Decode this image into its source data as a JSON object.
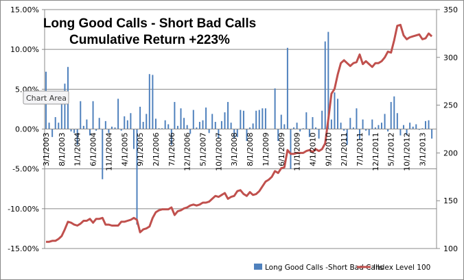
{
  "chart_data": {
    "type": "bar+line",
    "title_lines": [
      "Long Good Calls - Short Bad Calls",
      "Cumulative Return +223%"
    ],
    "tooltip": "Chart Area",
    "x_start": "3/1/2003",
    "x_tick_labels": [
      "3/1/2003",
      "8/1/2003",
      "1/1/2004",
      "6/1/2004",
      "11/1/2004",
      "4/1/2005",
      "9/1/2005",
      "2/1/2006",
      "7/1/2006",
      "12/1/2006",
      "5/1/2007",
      "10/1/2007",
      "3/1/2008",
      "8/1/2008",
      "1/1/2009",
      "6/1/2009",
      "11/1/2009",
      "4/1/2010",
      "9/1/2010",
      "2/1/2011",
      "7/1/2011",
      "12/1/2011",
      "5/1/2012",
      "10/1/2012",
      "3/1/2013"
    ],
    "y_left": {
      "min": -15,
      "max": 15,
      "step": 5,
      "tick_labels": [
        "15.00%",
        "10.00%",
        "5.00%",
        "0.00%",
        "-5.00%",
        "-10.00%",
        "-15.00%"
      ]
    },
    "y_right": {
      "min": 100,
      "max": 350,
      "step": 50,
      "tick_labels": [
        "350",
        "300",
        "250",
        "200",
        "150",
        "100"
      ]
    },
    "grid": true,
    "legend_position": "bottom",
    "series": [
      {
        "name": "Long Good Calls -Short Bad Calls",
        "type": "bar",
        "axis": "left",
        "color": "#4F81BD",
        "values": [
          7.2,
          0.8,
          -1.0,
          1.5,
          0.8,
          3.5,
          5.7,
          7.8,
          -0.3,
          -0.5,
          -2.0,
          3.5,
          0.4,
          1.2,
          -0.8,
          3.5,
          -0.2,
          1.4,
          -6.3,
          1.0,
          -0.5,
          0.3,
          0.2,
          3.8,
          -0.2,
          1.6,
          1.1,
          2.0,
          -2.5,
          -12.0,
          2.8,
          0.9,
          1.9,
          6.9,
          6.8,
          1.3,
          0.1,
          0.1,
          1.1,
          0.6,
          -2.0,
          3.4,
          0.4,
          2.6,
          1.4,
          0.5,
          -0.6,
          2.4,
          0.2,
          0.9,
          1.1,
          2.7,
          -0.5,
          1.9,
          0.9,
          -1.2,
          1.0,
          2.1,
          3.4,
          0.8,
          -1.2,
          -1.0,
          2.4,
          2.3,
          -1.5,
          0.2,
          0.7,
          2.3,
          2.4,
          2.6,
          2.6,
          0.0,
          0.0,
          5.1,
          -1.5,
          1.8,
          0.6,
          10.2,
          -5.0,
          0.2,
          0.8,
          -0.3,
          0.1,
          2.1,
          -1.0,
          1.5,
          0.2,
          -1.2,
          2.3,
          11.0,
          12.2,
          1.2,
          4.6,
          3.8,
          0.8,
          -0.2,
          -2.0,
          1.4,
          0.2,
          2.6,
          -1.3,
          1.2,
          -0.2,
          -0.8,
          1.2,
          0.2,
          0.5,
          0.8,
          1.9,
          -0.3,
          3.4,
          4.1,
          2.0,
          -0.8,
          0.5,
          -0.8,
          0.8,
          0.3,
          0.6,
          -0.1,
          0.1,
          1.0,
          1.1,
          -1.2
        ]
      },
      {
        "name": "Index Level 100",
        "type": "line",
        "axis": "right",
        "color": "#C0504D",
        "values": [
          107,
          107,
          108,
          108,
          110,
          113,
          120,
          128,
          127,
          125,
          124,
          126,
          129,
          129,
          131,
          127,
          131,
          131,
          132,
          125,
          125,
          124,
          124,
          124,
          128,
          128,
          129,
          130,
          132,
          130,
          117,
          120,
          121,
          123,
          132,
          138,
          140,
          141,
          141,
          141,
          143,
          135,
          139,
          140,
          142,
          143,
          145,
          146,
          145,
          146,
          148,
          148,
          149,
          152,
          155,
          154,
          156,
          158,
          152,
          154,
          155,
          160,
          161,
          157,
          155,
          159,
          156,
          157,
          160,
          165,
          170,
          172,
          175,
          181,
          179,
          184,
          185,
          203,
          199,
          199,
          200,
          200,
          200,
          202,
          203,
          201,
          204,
          202,
          204,
          210,
          235,
          262,
          267,
          282,
          294,
          297,
          294,
          291,
          294,
          295,
          303,
          293,
          296,
          293,
          290,
          294,
          294,
          296,
          300,
          306,
          305,
          318,
          333,
          334,
          323,
          319,
          321,
          322,
          323,
          324,
          319,
          320,
          325,
          322
        ]
      }
    ]
  }
}
